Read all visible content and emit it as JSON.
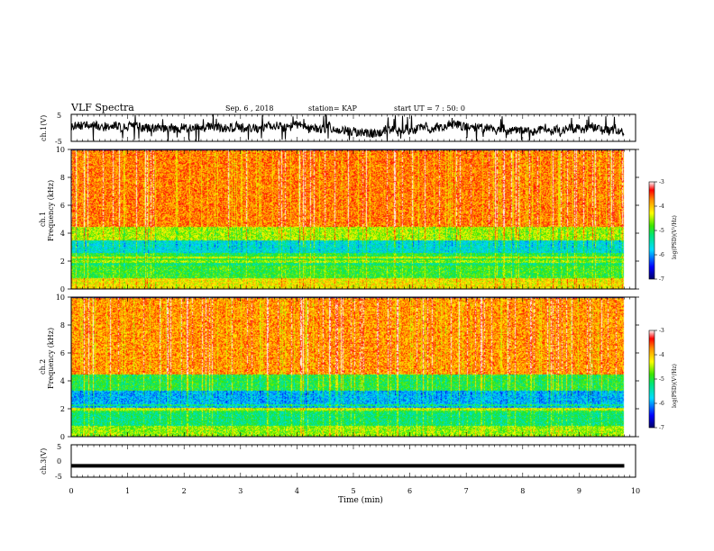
{
  "header": {
    "title": "VLF Spectra",
    "date": "Sep. 6 , 2018",
    "station": "station= KAP",
    "start": "start UT = 7 : 50: 0"
  },
  "chart_data": [
    {
      "type": "line",
      "name": "ch1-waveform",
      "ylabel": "ch.1(V)",
      "ylim": [
        -5,
        5
      ],
      "yticks": [
        "5",
        "-5"
      ],
      "xlim": [
        0,
        10
      ],
      "note_visible": "dense black waveform trace roughly between -5 and 5 V over 0–9.8 min"
    },
    {
      "type": "heatmap",
      "name": "ch1-spectrogram",
      "ylabel_top": "ch.1",
      "ylabel": "Frequency (kHz)",
      "ylim": [
        0,
        10
      ],
      "yticks": [
        "0",
        "2",
        "4",
        "6",
        "8",
        "10"
      ],
      "xlim": [
        0,
        10
      ],
      "data_end_min": 9.8,
      "colorbar": {
        "label": "log(PSD)(V²/Hz)",
        "range": [
          -7,
          -3
        ],
        "ticks": [
          "-3",
          "-4",
          "-5",
          "-6",
          "-7"
        ]
      },
      "bands_kHz": [
        {
          "from": 0.0,
          "to": 0.8,
          "level": -4.2
        },
        {
          "from": 0.8,
          "to": 1.7,
          "level": -4.9
        },
        {
          "from": 1.7,
          "to": 2.1,
          "level": -5.2
        },
        {
          "from": 2.1,
          "to": 2.6,
          "level": -5.0
        },
        {
          "from": 2.6,
          "to": 3.5,
          "level": -5.6
        },
        {
          "from": 3.5,
          "to": 4.5,
          "level": -4.5
        },
        {
          "from": 4.5,
          "to": 10.0,
          "level": -3.7
        }
      ]
    },
    {
      "type": "heatmap",
      "name": "ch2-spectrogram",
      "ylabel_top": "ch.2",
      "ylabel": "Frequency (kHz)",
      "ylim": [
        0,
        10
      ],
      "yticks": [
        "0",
        "2",
        "4",
        "6",
        "8",
        "10"
      ],
      "xlim": [
        0,
        10
      ],
      "data_end_min": 9.8,
      "colorbar": {
        "label": "log(PSD)(V²/Hz)",
        "range": [
          -7,
          -3
        ],
        "ticks": [
          "-3",
          "-4",
          "-5",
          "-6",
          "-7"
        ]
      },
      "bands_kHz": [
        {
          "from": 0.0,
          "to": 0.8,
          "level": -4.6
        },
        {
          "from": 0.8,
          "to": 1.8,
          "level": -5.2
        },
        {
          "from": 1.8,
          "to": 2.1,
          "level": -5.0
        },
        {
          "from": 2.1,
          "to": 3.3,
          "level": -5.9
        },
        {
          "from": 3.3,
          "to": 4.5,
          "level": -5.0
        },
        {
          "from": 4.5,
          "to": 10.0,
          "level": -3.8
        }
      ]
    },
    {
      "type": "line",
      "name": "ch3-waveform",
      "ylabel": "ch.3(V)",
      "ylim": [
        -5,
        5
      ],
      "yticks": [
        "5",
        "0",
        "-5"
      ],
      "xlim": [
        0,
        10
      ],
      "constant_value": -1.5
    }
  ],
  "xaxis": {
    "label": "Time (min)",
    "ticks": [
      "0",
      "1",
      "2",
      "3",
      "4",
      "5",
      "6",
      "7",
      "8",
      "9",
      "10"
    ]
  }
}
